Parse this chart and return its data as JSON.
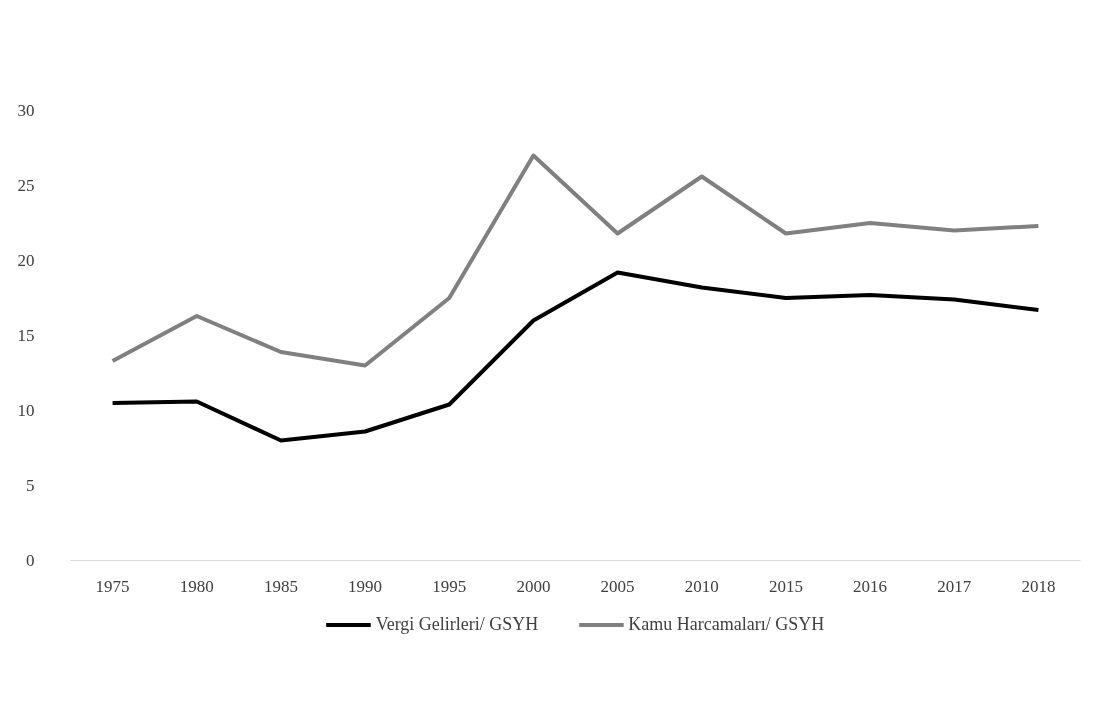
{
  "chart_data": {
    "type": "line",
    "categories": [
      "1975",
      "1980",
      "1985",
      "1990",
      "1995",
      "2000",
      "2005",
      "2010",
      "2015",
      "2016",
      "2017",
      "2018"
    ],
    "series": [
      {
        "name": "Vergi Gelirleri/ GSYH",
        "color": "#000000",
        "values": [
          10.5,
          10.6,
          8.0,
          8.6,
          10.4,
          16.0,
          19.2,
          18.2,
          17.5,
          17.7,
          17.4,
          16.7
        ]
      },
      {
        "name": "Kamu Harcamaları/ GSYH",
        "color": "#808080",
        "values": [
          13.3,
          16.3,
          13.9,
          13.0,
          17.5,
          27.0,
          21.8,
          25.6,
          21.8,
          22.5,
          22.0,
          22.3
        ]
      }
    ],
    "ylim": [
      0,
      30
    ],
    "yticks": [
      0,
      5,
      10,
      15,
      20,
      25,
      30
    ],
    "grid": false,
    "legend": "bottom",
    "marker": "none",
    "line_style": "solid"
  }
}
